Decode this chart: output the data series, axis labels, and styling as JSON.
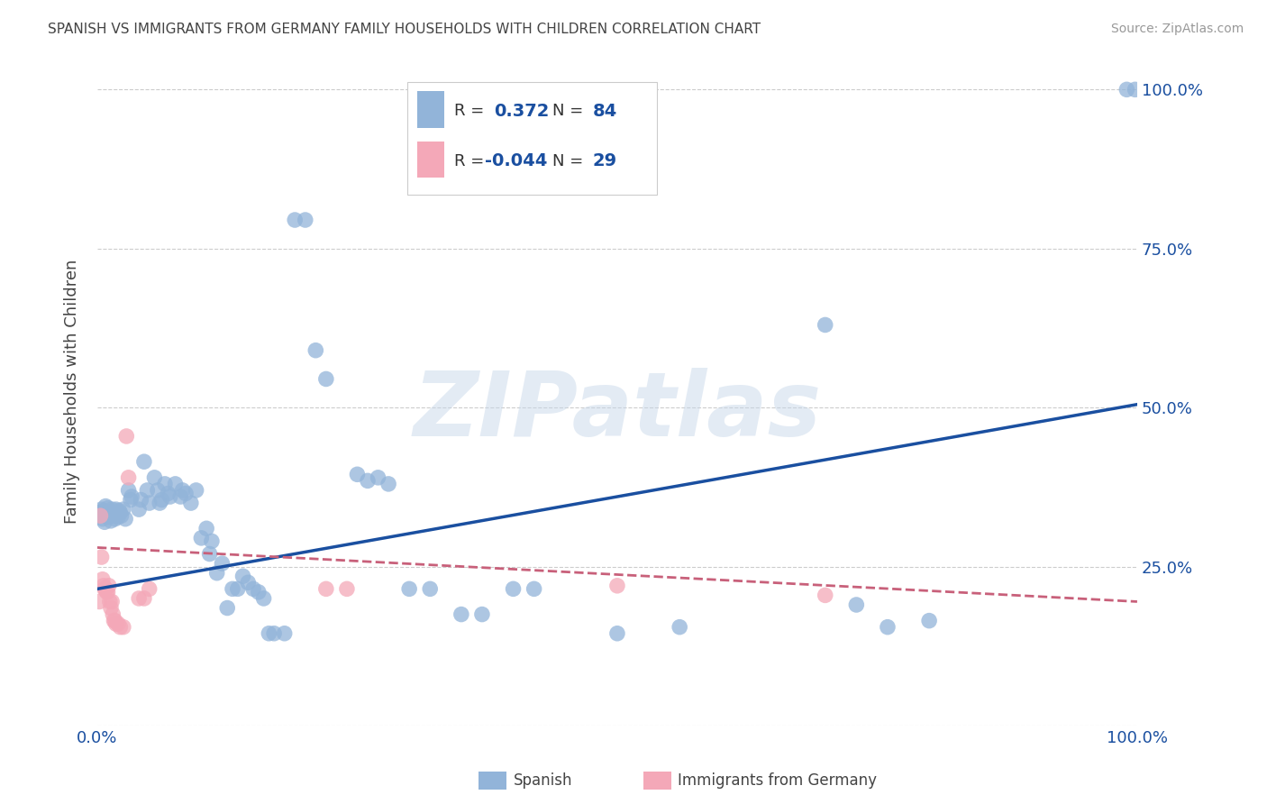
{
  "title": "SPANISH VS IMMIGRANTS FROM GERMANY FAMILY HOUSEHOLDS WITH CHILDREN CORRELATION CHART",
  "source": "Source: ZipAtlas.com",
  "ylabel": "Family Households with Children",
  "watermark": "ZIPatlas",
  "legend_blue_r": "0.372",
  "legend_blue_n": "84",
  "legend_pink_r": "-0.044",
  "legend_pink_n": "29",
  "blue_scatter": [
    [
      0.002,
      0.335
    ],
    [
      0.003,
      0.33
    ],
    [
      0.004,
      0.34
    ],
    [
      0.005,
      0.325
    ],
    [
      0.006,
      0.338
    ],
    [
      0.007,
      0.32
    ],
    [
      0.008,
      0.345
    ],
    [
      0.009,
      0.33
    ],
    [
      0.01,
      0.342
    ],
    [
      0.011,
      0.328
    ],
    [
      0.012,
      0.335
    ],
    [
      0.013,
      0.322
    ],
    [
      0.014,
      0.34
    ],
    [
      0.015,
      0.335
    ],
    [
      0.016,
      0.33
    ],
    [
      0.017,
      0.325
    ],
    [
      0.018,
      0.34
    ],
    [
      0.019,
      0.332
    ],
    [
      0.02,
      0.328
    ],
    [
      0.021,
      0.338
    ],
    [
      0.022,
      0.335
    ],
    [
      0.023,
      0.33
    ],
    [
      0.025,
      0.34
    ],
    [
      0.027,
      0.325
    ],
    [
      0.03,
      0.37
    ],
    [
      0.032,
      0.355
    ],
    [
      0.033,
      0.36
    ],
    [
      0.04,
      0.34
    ],
    [
      0.042,
      0.355
    ],
    [
      0.045,
      0.415
    ],
    [
      0.048,
      0.37
    ],
    [
      0.05,
      0.35
    ],
    [
      0.055,
      0.39
    ],
    [
      0.058,
      0.37
    ],
    [
      0.06,
      0.35
    ],
    [
      0.062,
      0.355
    ],
    [
      0.065,
      0.38
    ],
    [
      0.068,
      0.365
    ],
    [
      0.07,
      0.36
    ],
    [
      0.075,
      0.38
    ],
    [
      0.08,
      0.36
    ],
    [
      0.082,
      0.37
    ],
    [
      0.085,
      0.365
    ],
    [
      0.09,
      0.35
    ],
    [
      0.095,
      0.37
    ],
    [
      0.1,
      0.295
    ],
    [
      0.105,
      0.31
    ],
    [
      0.108,
      0.27
    ],
    [
      0.11,
      0.29
    ],
    [
      0.115,
      0.24
    ],
    [
      0.12,
      0.255
    ],
    [
      0.125,
      0.185
    ],
    [
      0.13,
      0.215
    ],
    [
      0.135,
      0.215
    ],
    [
      0.14,
      0.235
    ],
    [
      0.145,
      0.225
    ],
    [
      0.15,
      0.215
    ],
    [
      0.155,
      0.21
    ],
    [
      0.16,
      0.2
    ],
    [
      0.165,
      0.145
    ],
    [
      0.17,
      0.145
    ],
    [
      0.18,
      0.145
    ],
    [
      0.19,
      0.795
    ],
    [
      0.2,
      0.795
    ],
    [
      0.21,
      0.59
    ],
    [
      0.22,
      0.545
    ],
    [
      0.25,
      0.395
    ],
    [
      0.26,
      0.385
    ],
    [
      0.27,
      0.39
    ],
    [
      0.28,
      0.38
    ],
    [
      0.3,
      0.215
    ],
    [
      0.32,
      0.215
    ],
    [
      0.35,
      0.175
    ],
    [
      0.37,
      0.175
    ],
    [
      0.4,
      0.215
    ],
    [
      0.42,
      0.215
    ],
    [
      0.5,
      0.145
    ],
    [
      0.56,
      0.155
    ],
    [
      0.7,
      0.63
    ],
    [
      0.73,
      0.19
    ],
    [
      0.76,
      0.155
    ],
    [
      0.8,
      0.165
    ],
    [
      0.99,
      1.0
    ],
    [
      0.998,
      1.0
    ]
  ],
  "pink_scatter": [
    [
      0.002,
      0.195
    ],
    [
      0.003,
      0.33
    ],
    [
      0.004,
      0.265
    ],
    [
      0.005,
      0.23
    ],
    [
      0.006,
      0.22
    ],
    [
      0.007,
      0.215
    ],
    [
      0.008,
      0.215
    ],
    [
      0.009,
      0.21
    ],
    [
      0.01,
      0.21
    ],
    [
      0.011,
      0.22
    ],
    [
      0.012,
      0.195
    ],
    [
      0.013,
      0.185
    ],
    [
      0.014,
      0.195
    ],
    [
      0.015,
      0.175
    ],
    [
      0.016,
      0.165
    ],
    [
      0.017,
      0.165
    ],
    [
      0.018,
      0.16
    ],
    [
      0.02,
      0.16
    ],
    [
      0.022,
      0.155
    ],
    [
      0.025,
      0.155
    ],
    [
      0.028,
      0.455
    ],
    [
      0.03,
      0.39
    ],
    [
      0.04,
      0.2
    ],
    [
      0.045,
      0.2
    ],
    [
      0.05,
      0.215
    ],
    [
      0.22,
      0.215
    ],
    [
      0.24,
      0.215
    ],
    [
      0.5,
      0.22
    ],
    [
      0.7,
      0.205
    ]
  ],
  "blue_line_x": [
    0.0,
    1.0
  ],
  "blue_line_y": [
    0.215,
    0.505
  ],
  "pink_line_x": [
    0.0,
    1.0
  ],
  "pink_line_y": [
    0.28,
    0.195
  ],
  "blue_color": "#92b4d9",
  "pink_color": "#f4a8b8",
  "blue_line_color": "#1a4fa0",
  "pink_line_color": "#c8607a",
  "background_color": "#ffffff",
  "grid_color": "#cccccc",
  "title_color": "#444444",
  "xlim": [
    0.0,
    1.0
  ],
  "ylim": [
    0.0,
    1.05
  ],
  "ytick_vals": [
    0.0,
    0.25,
    0.5,
    0.75,
    1.0
  ],
  "ytick_labels_right": [
    "",
    "25.0%",
    "50.0%",
    "75.0%",
    "100.0%"
  ],
  "xtick_vals": [
    0.0,
    1.0
  ],
  "xtick_labels": [
    "0.0%",
    "100.0%"
  ]
}
